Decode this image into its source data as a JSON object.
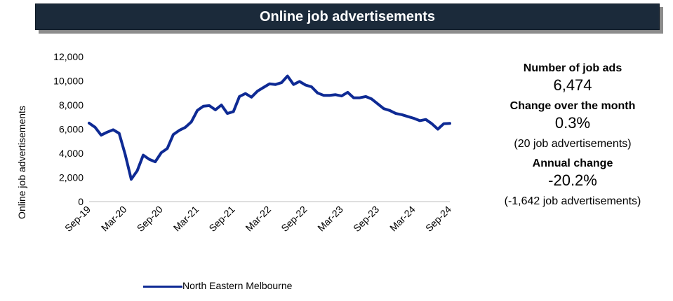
{
  "header": {
    "title": "Online job advertisements"
  },
  "stats": {
    "number_label": "Number of job ads",
    "number_value": "6,474",
    "month_label": "Change over the month",
    "month_value": "0.3%",
    "month_sub": "(20 job advertisements)",
    "annual_label": "Annual change",
    "annual_value": "-20.2%",
    "annual_sub": "(-1,642 job advertisements)"
  },
  "colors": {
    "series": "#0e2a94",
    "title_bg": "#1b2a3a"
  },
  "chart_data": {
    "type": "line",
    "title": "",
    "xlabel": "",
    "ylabel": "Online job advertisements",
    "ylim": [
      0,
      12000
    ],
    "yticks": [
      0,
      2000,
      4000,
      6000,
      8000,
      10000,
      12000
    ],
    "ytick_labels": [
      "0",
      "2,000",
      "4,000",
      "6,000",
      "8,000",
      "10,000",
      "12,000"
    ],
    "xtick_labels": [
      "Sep-19",
      "Mar-20",
      "Sep-20",
      "Mar-21",
      "Sep-21",
      "Mar-22",
      "Sep-22",
      "Mar-23",
      "Sep-23",
      "Mar-24",
      "Sep-24"
    ],
    "xtick_indices": [
      0,
      6,
      12,
      18,
      24,
      30,
      36,
      42,
      48,
      54,
      60
    ],
    "x_start": "Sep-19",
    "x_end": "Sep-24",
    "grid": false,
    "legend_position": "bottom",
    "series": [
      {
        "name": "North Eastern Melbourne",
        "color": "#0e2a94",
        "values": [
          6500,
          6150,
          5500,
          5750,
          5950,
          5650,
          3900,
          1850,
          2550,
          3850,
          3500,
          3300,
          4050,
          4400,
          5550,
          5900,
          6150,
          6600,
          7550,
          7900,
          7950,
          7600,
          8000,
          7300,
          7450,
          8700,
          8950,
          8650,
          9150,
          9450,
          9750,
          9700,
          9850,
          10400,
          9700,
          9950,
          9650,
          9500,
          9000,
          8800,
          8800,
          8850,
          8750,
          9050,
          8600,
          8600,
          8700,
          8500,
          8100,
          7700,
          7550,
          7300,
          7200,
          7050,
          6900,
          6700,
          6800,
          6450,
          6000,
          6450,
          6474
        ]
      }
    ]
  },
  "legend": {
    "series_name": "North Eastern Melbourne"
  }
}
